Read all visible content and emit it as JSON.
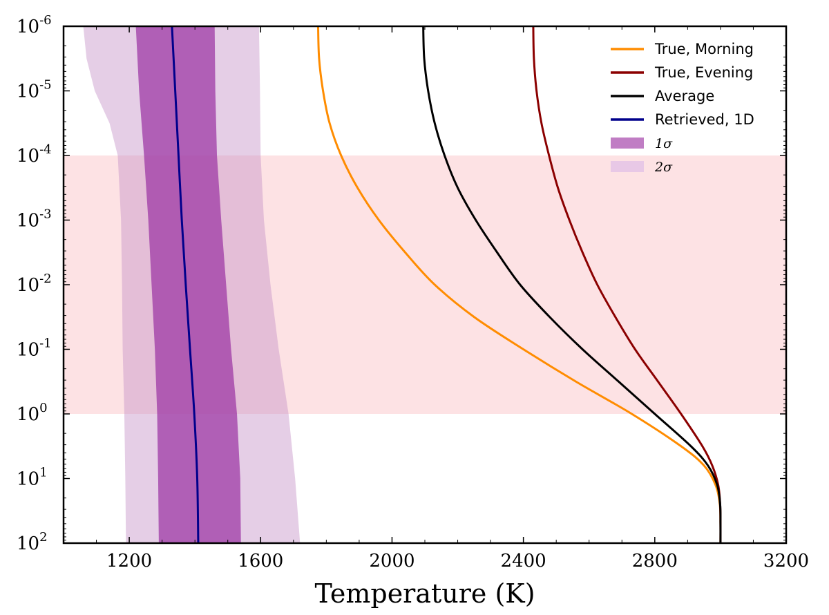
{
  "chart_data": {
    "type": "line",
    "xlabel": "Temperature (K)",
    "ylabel": "",
    "xlim": [
      1000,
      3200
    ],
    "ylim_log10": [
      -6,
      2
    ],
    "y_inverted": true,
    "x_ticks": [
      {
        "value": 1200,
        "label": "1200"
      },
      {
        "value": 1600,
        "label": "1600"
      },
      {
        "value": 2000,
        "label": "2000"
      },
      {
        "value": 2400,
        "label": "2400"
      },
      {
        "value": 2800,
        "label": "2800"
      },
      {
        "value": 3200,
        "label": "3200"
      }
    ],
    "y_ticks": [
      {
        "exp": -6,
        "base": "10",
        "sup": "-6"
      },
      {
        "exp": -5,
        "base": "10",
        "sup": "-5"
      },
      {
        "exp": -4,
        "base": "10",
        "sup": "-4"
      },
      {
        "exp": -3,
        "base": "10",
        "sup": "-3"
      },
      {
        "exp": -2,
        "base": "10",
        "sup": "-2"
      },
      {
        "exp": -1,
        "base": "10",
        "sup": "-1"
      },
      {
        "exp": 0,
        "base": "10",
        "sup": "0"
      },
      {
        "exp": 1,
        "base": "10",
        "sup": "1"
      },
      {
        "exp": 2,
        "base": "10",
        "sup": "2"
      }
    ],
    "shaded_pressure_region": {
      "from_exp": -4,
      "to_exp": 0,
      "color": "#fde2e4"
    },
    "series": [
      {
        "name": "True, Morning",
        "color": "#ff8c00",
        "points": [
          [
            1775,
            -6
          ],
          [
            1778,
            -5.5
          ],
          [
            1790,
            -5
          ],
          [
            1810,
            -4.5
          ],
          [
            1845,
            -4
          ],
          [
            1895,
            -3.5
          ],
          [
            1960,
            -3
          ],
          [
            2040,
            -2.5
          ],
          [
            2130,
            -2
          ],
          [
            2250,
            -1.5
          ],
          [
            2400,
            -1
          ],
          [
            2560,
            -0.5
          ],
          [
            2730,
            0
          ],
          [
            2880,
            0.5
          ],
          [
            2950,
            0.8
          ],
          [
            2985,
            1.1
          ],
          [
            2998,
            1.4
          ],
          [
            3000,
            1.7
          ],
          [
            3000,
            2
          ]
        ]
      },
      {
        "name": "True, Evening",
        "color": "#8b0000",
        "points": [
          [
            2430,
            -6
          ],
          [
            2432,
            -5.5
          ],
          [
            2440,
            -5
          ],
          [
            2455,
            -4.5
          ],
          [
            2478,
            -4
          ],
          [
            2505,
            -3.5
          ],
          [
            2540,
            -3
          ],
          [
            2580,
            -2.5
          ],
          [
            2625,
            -2
          ],
          [
            2680,
            -1.5
          ],
          [
            2740,
            -1
          ],
          [
            2810,
            -0.5
          ],
          [
            2880,
            0
          ],
          [
            2945,
            0.5
          ],
          [
            2975,
            0.8
          ],
          [
            2993,
            1.1
          ],
          [
            2999,
            1.4
          ],
          [
            3000,
            1.7
          ],
          [
            3000,
            2
          ]
        ]
      },
      {
        "name": "Average",
        "color": "#000000",
        "points": [
          [
            2095,
            -6
          ],
          [
            2098,
            -5.5
          ],
          [
            2110,
            -5
          ],
          [
            2130,
            -4.5
          ],
          [
            2160,
            -4
          ],
          [
            2200,
            -3.5
          ],
          [
            2255,
            -3
          ],
          [
            2320,
            -2.5
          ],
          [
            2390,
            -2
          ],
          [
            2480,
            -1.5
          ],
          [
            2580,
            -1
          ],
          [
            2690,
            -0.5
          ],
          [
            2800,
            0
          ],
          [
            2910,
            0.5
          ],
          [
            2962,
            0.8
          ],
          [
            2990,
            1.1
          ],
          [
            2999,
            1.4
          ],
          [
            3000,
            1.7
          ],
          [
            3000,
            2
          ]
        ]
      },
      {
        "name": "Retrieved, 1D",
        "color": "#00008b",
        "points": [
          [
            1330,
            -6
          ],
          [
            1340,
            -5
          ],
          [
            1350,
            -4
          ],
          [
            1360,
            -3
          ],
          [
            1372,
            -2
          ],
          [
            1385,
            -1
          ],
          [
            1398,
            0
          ],
          [
            1407,
            1
          ],
          [
            1410,
            2
          ]
        ]
      }
    ],
    "bands": [
      {
        "name": "2σ",
        "color": "#c592c8",
        "opacity": 0.45,
        "left": [
          [
            1060,
            -6
          ],
          [
            1070,
            -5.5
          ],
          [
            1095,
            -5
          ],
          [
            1140,
            -4.5
          ],
          [
            1165,
            -4
          ],
          [
            1175,
            -3
          ],
          [
            1178,
            -2
          ],
          [
            1180,
            -1
          ],
          [
            1185,
            0
          ],
          [
            1188,
            1
          ],
          [
            1190,
            2
          ]
        ],
        "right": [
          [
            1595,
            -6
          ],
          [
            1598,
            -5
          ],
          [
            1600,
            -4
          ],
          [
            1610,
            -3
          ],
          [
            1630,
            -2
          ],
          [
            1655,
            -1
          ],
          [
            1685,
            0
          ],
          [
            1705,
            1
          ],
          [
            1720,
            2
          ]
        ]
      },
      {
        "name": "1σ",
        "color": "#9b35a3",
        "opacity": 0.72,
        "left": [
          [
            1220,
            -6
          ],
          [
            1230,
            -5
          ],
          [
            1245,
            -4
          ],
          [
            1258,
            -3
          ],
          [
            1268,
            -2
          ],
          [
            1278,
            -1
          ],
          [
            1285,
            0
          ],
          [
            1288,
            1
          ],
          [
            1290,
            2
          ]
        ],
        "right": [
          [
            1460,
            -6
          ],
          [
            1462,
            -5
          ],
          [
            1467,
            -4
          ],
          [
            1480,
            -3
          ],
          [
            1495,
            -2
          ],
          [
            1510,
            -1
          ],
          [
            1528,
            0
          ],
          [
            1538,
            1
          ],
          [
            1540,
            2
          ]
        ]
      }
    ],
    "legend": {
      "placement": "top-right",
      "items": [
        {
          "label": "True, Morning",
          "kind": "line",
          "color": "#ff8c00"
        },
        {
          "label": "True, Evening",
          "kind": "line",
          "color": "#8b0000"
        },
        {
          "label": "Average",
          "kind": "line",
          "color": "#000000"
        },
        {
          "label": "Retrieved, 1D",
          "kind": "line",
          "color": "#00008b"
        },
        {
          "label": "1σ",
          "kind": "patch",
          "color": "#c07dc4"
        },
        {
          "label": "2σ",
          "kind": "patch",
          "color": "#e8c8e6"
        }
      ]
    }
  }
}
